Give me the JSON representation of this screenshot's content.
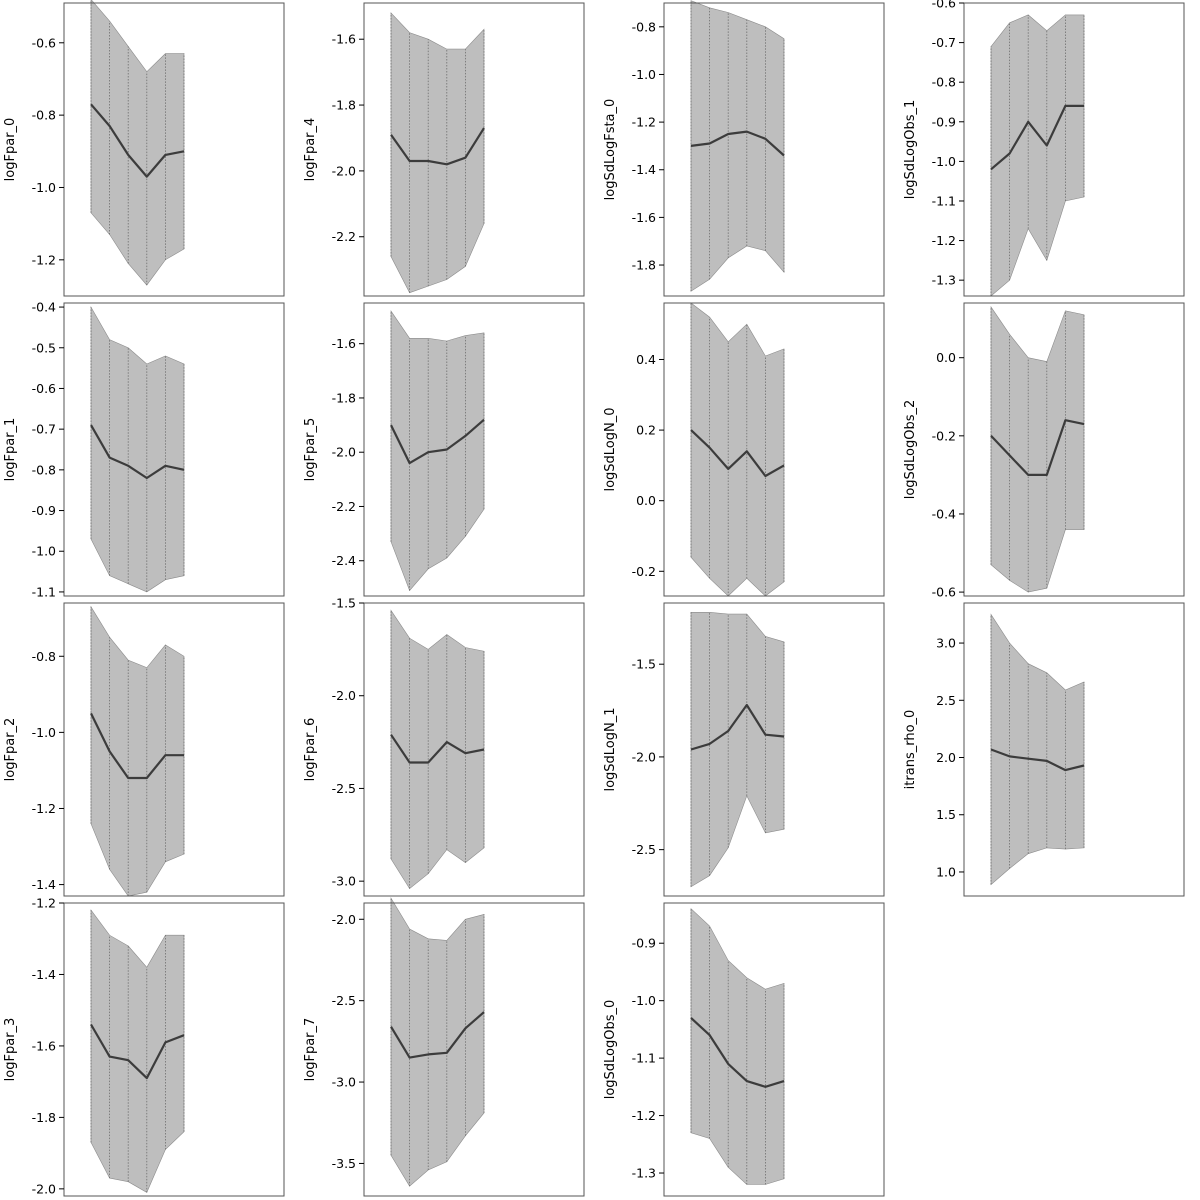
{
  "figure": {
    "layout": "4x4 grid of panels, 15 panels filled, bottom-right empty",
    "grid": false,
    "legend": "none"
  },
  "colors": {
    "band_fill": "#bebebe",
    "band_edge": "#8c8c8c",
    "median_line": "#3c3c3c",
    "frame": "#555555"
  },
  "chart_data": [
    {
      "type": "area",
      "ylabel": "logFpar_0",
      "ylim": [
        -1.3,
        -0.49
      ],
      "yticks": [
        -1.2,
        -1.0,
        -0.8,
        -0.6
      ],
      "x": [
        1,
        2,
        3,
        4,
        5,
        6
      ],
      "median": [
        -0.77,
        -0.83,
        -0.91,
        -0.97,
        -0.91,
        -0.9
      ],
      "lower": [
        -1.07,
        -1.13,
        -1.21,
        -1.27,
        -1.2,
        -1.17
      ],
      "upper": [
        -0.48,
        -0.54,
        -0.61,
        -0.68,
        -0.63,
        -0.63
      ]
    },
    {
      "type": "area",
      "ylabel": "logFpar_1",
      "ylim": [
        -1.11,
        -0.39
      ],
      "yticks": [
        -1.1,
        -1.0,
        -0.9,
        -0.8,
        -0.7,
        -0.6,
        -0.5,
        -0.4
      ],
      "x": [
        1,
        2,
        3,
        4,
        5,
        6
      ],
      "median": [
        -0.69,
        -0.77,
        -0.79,
        -0.82,
        -0.79,
        -0.8
      ],
      "lower": [
        -0.97,
        -1.06,
        -1.08,
        -1.1,
        -1.07,
        -1.06
      ],
      "upper": [
        -0.4,
        -0.48,
        -0.5,
        -0.54,
        -0.52,
        -0.54
      ]
    },
    {
      "type": "area",
      "ylabel": "logFpar_2",
      "ylim": [
        -1.43,
        -0.66
      ],
      "yticks": [
        -1.4,
        -1.2,
        -1.0,
        -0.8
      ],
      "x": [
        1,
        2,
        3,
        4,
        5,
        6
      ],
      "median": [
        -0.95,
        -1.05,
        -1.12,
        -1.12,
        -1.06,
        -1.06
      ],
      "lower": [
        -1.24,
        -1.36,
        -1.43,
        -1.42,
        -1.34,
        -1.32
      ],
      "upper": [
        -0.67,
        -0.75,
        -0.81,
        -0.83,
        -0.77,
        -0.8
      ]
    },
    {
      "type": "area",
      "ylabel": "logFpar_3",
      "ylim": [
        -2.02,
        -1.2
      ],
      "yticks": [
        -2.0,
        -1.8,
        -1.6,
        -1.4,
        -1.2
      ],
      "x": [
        1,
        2,
        3,
        4,
        5,
        6
      ],
      "median": [
        -1.54,
        -1.63,
        -1.64,
        -1.69,
        -1.59,
        -1.57
      ],
      "lower": [
        -1.87,
        -1.97,
        -1.98,
        -2.01,
        -1.89,
        -1.84
      ],
      "upper": [
        -1.22,
        -1.29,
        -1.32,
        -1.38,
        -1.29,
        -1.29
      ]
    },
    {
      "type": "area",
      "ylabel": "logFpar_4",
      "ylim": [
        -2.38,
        -1.49
      ],
      "yticks": [
        -2.2,
        -2.0,
        -1.8,
        -1.6
      ],
      "x": [
        1,
        2,
        3,
        4,
        5,
        6
      ],
      "median": [
        -1.89,
        -1.97,
        -1.97,
        -1.98,
        -1.96,
        -1.87
      ],
      "lower": [
        -2.26,
        -2.37,
        -2.35,
        -2.33,
        -2.29,
        -2.16
      ],
      "upper": [
        -1.52,
        -1.58,
        -1.6,
        -1.63,
        -1.63,
        -1.57
      ]
    },
    {
      "type": "area",
      "ylabel": "logFpar_5",
      "ylim": [
        -2.53,
        -1.45
      ],
      "yticks": [
        -2.4,
        -2.2,
        -2.0,
        -1.8,
        -1.6
      ],
      "x": [
        1,
        2,
        3,
        4,
        5,
        6
      ],
      "median": [
        -1.9,
        -2.04,
        -2.0,
        -1.99,
        -1.94,
        -1.88
      ],
      "lower": [
        -2.33,
        -2.51,
        -2.43,
        -2.39,
        -2.31,
        -2.21
      ],
      "upper": [
        -1.48,
        -1.58,
        -1.58,
        -1.59,
        -1.57,
        -1.56
      ]
    },
    {
      "type": "area",
      "ylabel": "logFpar_6",
      "ylim": [
        -3.08,
        -1.5
      ],
      "yticks": [
        -3.0,
        -2.5,
        -2.0,
        -1.5
      ],
      "x": [
        1,
        2,
        3,
        4,
        5,
        6
      ],
      "median": [
        -2.21,
        -2.36,
        -2.36,
        -2.25,
        -2.31,
        -2.29
      ],
      "lower": [
        -2.88,
        -3.04,
        -2.96,
        -2.83,
        -2.9,
        -2.82
      ],
      "upper": [
        -1.54,
        -1.69,
        -1.75,
        -1.67,
        -1.74,
        -1.76
      ]
    },
    {
      "type": "area",
      "ylabel": "logFpar_7",
      "ylim": [
        -3.7,
        -1.9
      ],
      "yticks": [
        -3.5,
        -3.0,
        -2.5,
        -2.0
      ],
      "x": [
        1,
        2,
        3,
        4,
        5,
        6
      ],
      "median": [
        -2.66,
        -2.85,
        -2.83,
        -2.82,
        -2.67,
        -2.57
      ],
      "lower": [
        -3.45,
        -3.64,
        -3.54,
        -3.49,
        -3.33,
        -3.19
      ],
      "upper": [
        -1.87,
        -2.06,
        -2.12,
        -2.13,
        -2.0,
        -1.97
      ]
    },
    {
      "type": "area",
      "ylabel": "logSdLogFsta_0",
      "ylim": [
        -1.93,
        -0.7
      ],
      "yticks": [
        -1.8,
        -1.6,
        -1.4,
        -1.2,
        -1.0,
        -0.8
      ],
      "x": [
        1,
        2,
        3,
        4,
        5,
        6
      ],
      "median": [
        -1.3,
        -1.29,
        -1.25,
        -1.24,
        -1.27,
        -1.34
      ],
      "lower": [
        -1.91,
        -1.86,
        -1.77,
        -1.72,
        -1.74,
        -1.83
      ],
      "upper": [
        -0.69,
        -0.72,
        -0.74,
        -0.77,
        -0.8,
        -0.85
      ]
    },
    {
      "type": "area",
      "ylabel": "logSdLogN_0",
      "ylim": [
        -0.27,
        0.56
      ],
      "yticks": [
        -0.2,
        0.0,
        0.2,
        0.4
      ],
      "x": [
        1,
        2,
        3,
        4,
        5,
        6
      ],
      "median": [
        0.2,
        0.15,
        0.09,
        0.14,
        0.07,
        0.1
      ],
      "lower": [
        -0.16,
        -0.22,
        -0.27,
        -0.22,
        -0.27,
        -0.23
      ],
      "upper": [
        0.56,
        0.52,
        0.45,
        0.5,
        0.41,
        0.43
      ]
    },
    {
      "type": "area",
      "ylabel": "logSdLogN_1",
      "ylim": [
        -2.75,
        -1.17
      ],
      "yticks": [
        -2.5,
        -2.0,
        -1.5
      ],
      "x": [
        1,
        2,
        3,
        4,
        5,
        6
      ],
      "median": [
        -1.96,
        -1.93,
        -1.86,
        -1.72,
        -1.88,
        -1.89
      ],
      "lower": [
        -2.7,
        -2.64,
        -2.49,
        -2.21,
        -2.41,
        -2.39
      ],
      "upper": [
        -1.22,
        -1.22,
        -1.23,
        -1.23,
        -1.35,
        -1.38
      ]
    },
    {
      "type": "area",
      "ylabel": "logSdLogObs_0",
      "ylim": [
        -1.34,
        -0.83
      ],
      "yticks": [
        -1.3,
        -1.2,
        -1.1,
        -1.0,
        -0.9
      ],
      "x": [
        1,
        2,
        3,
        4,
        5,
        6
      ],
      "median": [
        -1.03,
        -1.06,
        -1.11,
        -1.14,
        -1.15,
        -1.14
      ],
      "lower": [
        -1.23,
        -1.24,
        -1.29,
        -1.32,
        -1.32,
        -1.31
      ],
      "upper": [
        -0.84,
        -0.87,
        -0.93,
        -0.96,
        -0.98,
        -0.97
      ]
    },
    {
      "type": "area",
      "ylabel": "logSdLogObs_1",
      "ylim": [
        -1.34,
        -0.6
      ],
      "yticks": [
        -1.3,
        -1.2,
        -1.1,
        -1.0,
        -0.9,
        -0.8,
        -0.7,
        -0.6
      ],
      "x": [
        1,
        2,
        3,
        4,
        5,
        6
      ],
      "median": [
        -1.02,
        -0.98,
        -0.9,
        -0.96,
        -0.86,
        -0.86
      ],
      "lower": [
        -1.34,
        -1.3,
        -1.17,
        -1.25,
        -1.1,
        -1.09
      ],
      "upper": [
        -0.71,
        -0.65,
        -0.63,
        -0.67,
        -0.63,
        -0.63
      ]
    },
    {
      "type": "area",
      "ylabel": "logSdLogObs_2",
      "ylim": [
        -0.61,
        0.14
      ],
      "yticks": [
        -0.6,
        -0.4,
        -0.2,
        0.0
      ],
      "x": [
        1,
        2,
        3,
        4,
        5,
        6
      ],
      "median": [
        -0.2,
        -0.25,
        -0.3,
        -0.3,
        -0.16,
        -0.17
      ],
      "lower": [
        -0.53,
        -0.57,
        -0.6,
        -0.59,
        -0.44,
        -0.44
      ],
      "upper": [
        0.13,
        0.06,
        0.0,
        -0.01,
        0.12,
        0.11
      ]
    },
    {
      "type": "area",
      "ylabel": "itrans_rho_0",
      "ylim": [
        0.79,
        3.35
      ],
      "yticks": [
        1.0,
        1.5,
        2.0,
        2.5,
        3.0
      ],
      "x": [
        1,
        2,
        3,
        4,
        5,
        6
      ],
      "median": [
        2.07,
        2.01,
        1.99,
        1.97,
        1.89,
        1.93
      ],
      "lower": [
        0.89,
        1.03,
        1.16,
        1.21,
        1.2,
        1.21
      ],
      "upper": [
        3.25,
        3.0,
        2.82,
        2.74,
        2.59,
        2.66
      ]
    }
  ]
}
